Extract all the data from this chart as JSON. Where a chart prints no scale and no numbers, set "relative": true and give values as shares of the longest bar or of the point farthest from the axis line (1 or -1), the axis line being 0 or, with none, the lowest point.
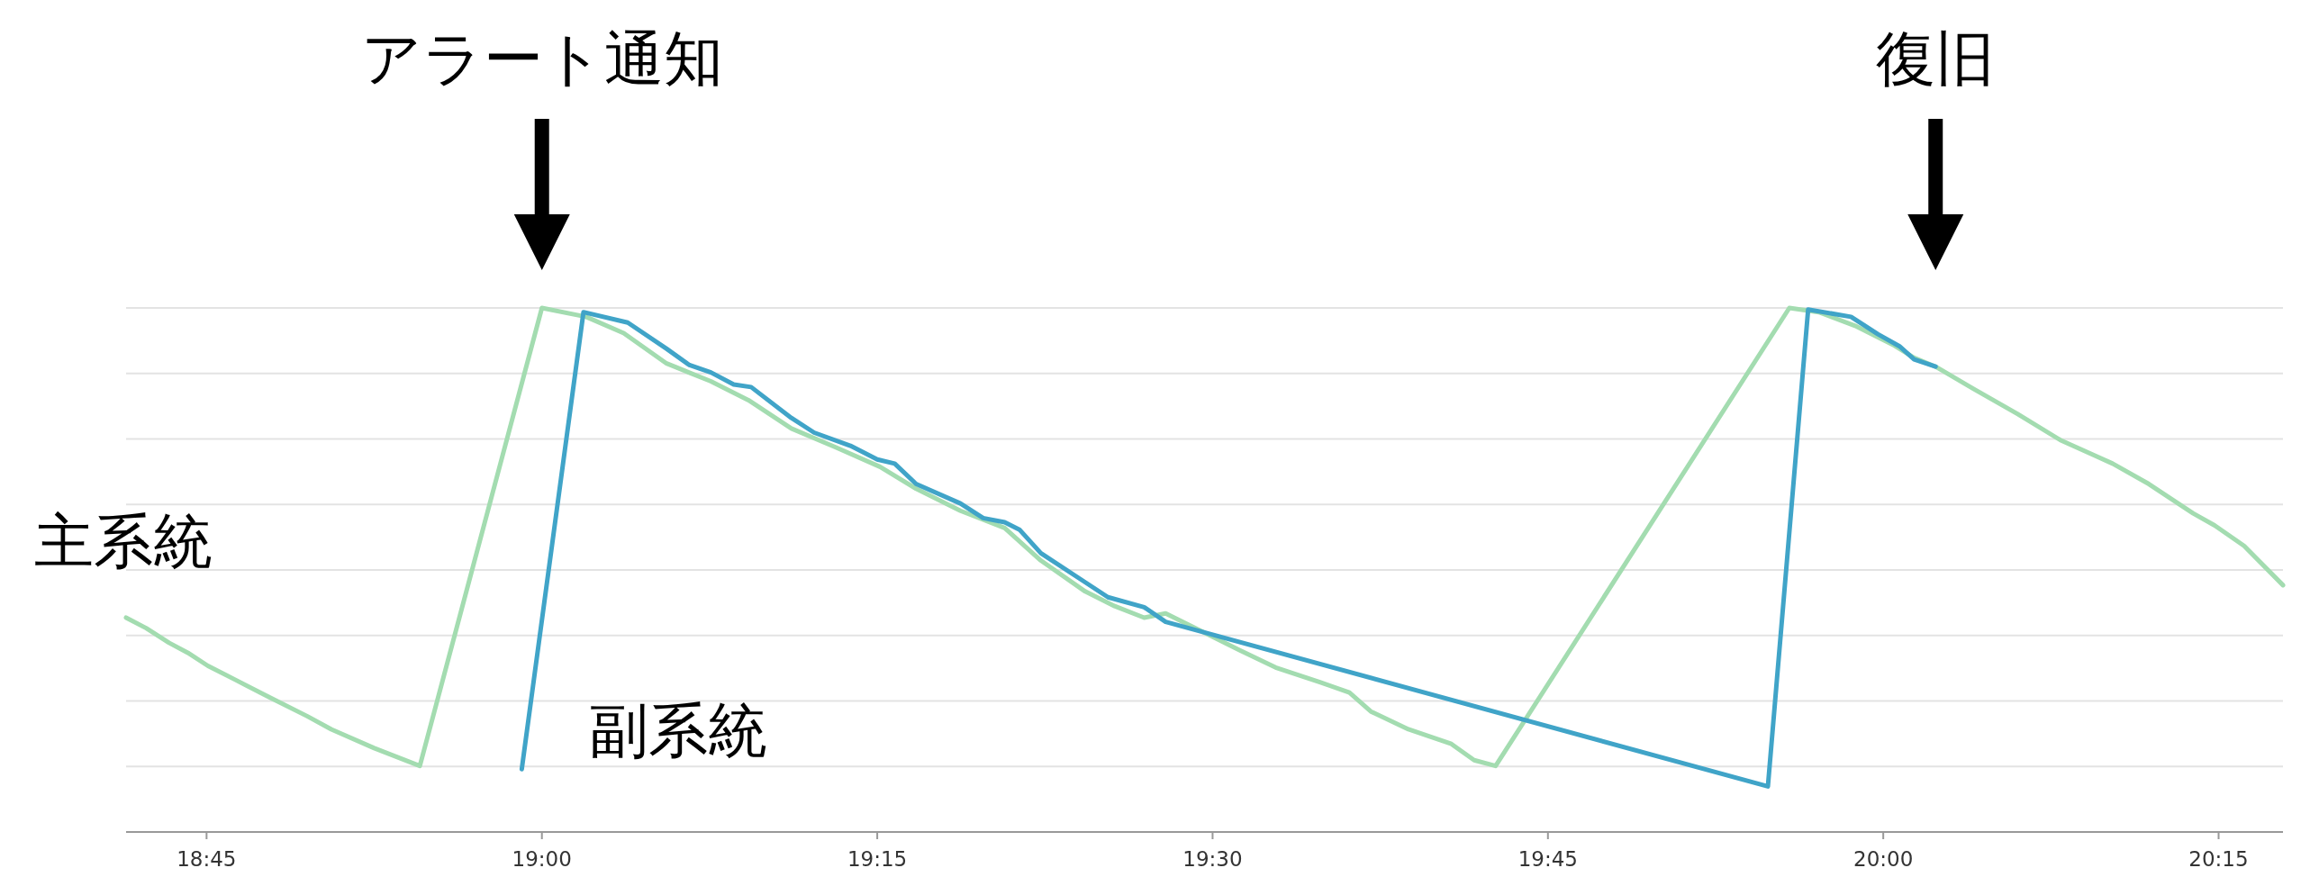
{
  "chart_data": {
    "type": "line",
    "relative": true,
    "grid": "y",
    "line_style": "solid",
    "xlim": [
      18.69,
      20.298
    ],
    "xticks": [
      {
        "value": 18.75,
        "label": "18:45"
      },
      {
        "value": 19.0,
        "label": "19:00"
      },
      {
        "value": 19.25,
        "label": "19:15"
      },
      {
        "value": 19.5,
        "label": "19:30"
      },
      {
        "value": 19.75,
        "label": "19:45"
      },
      {
        "value": 20.0,
        "label": "20:00"
      },
      {
        "value": 20.25,
        "label": "20:15"
      }
    ],
    "annotations": [
      "アラート通知",
      "復旧"
    ],
    "series": [
      {
        "name": "主系統",
        "color": "#a3dcb0",
        "x": [
          18.69,
          18.705,
          18.722,
          18.736,
          18.751,
          18.771,
          18.796,
          18.825,
          18.843,
          18.875,
          18.909,
          19.0,
          19.033,
          19.061,
          19.093,
          19.126,
          19.154,
          19.186,
          19.219,
          19.252,
          19.279,
          19.312,
          19.345,
          19.372,
          19.405,
          19.427,
          19.449,
          19.465,
          19.487,
          19.52,
          19.547,
          19.58,
          19.602,
          19.618,
          19.646,
          19.678,
          19.695,
          19.711,
          19.93,
          19.952,
          19.979,
          20.007,
          20.023,
          20.039,
          20.067,
          20.1,
          20.132,
          20.171,
          20.198,
          20.231,
          20.247,
          20.269,
          20.298
        ],
        "values": [
          0.409,
          0.389,
          0.361,
          0.342,
          0.317,
          0.291,
          0.258,
          0.221,
          0.196,
          0.16,
          0.126,
          1.0,
          0.983,
          0.952,
          0.894,
          0.86,
          0.824,
          0.77,
          0.734,
          0.697,
          0.655,
          0.613,
          0.58,
          0.518,
          0.459,
          0.431,
          0.409,
          0.417,
          0.389,
          0.347,
          0.314,
          0.286,
          0.266,
          0.23,
          0.196,
          0.168,
          0.137,
          0.126,
          1.0,
          0.992,
          0.966,
          0.93,
          0.905,
          0.888,
          0.846,
          0.798,
          0.748,
          0.703,
          0.664,
          0.608,
          0.585,
          0.546,
          0.471
        ]
      },
      {
        "name": "副系統",
        "color": "#40a4c8",
        "x": [
          18.985,
          19.031,
          19.064,
          19.093,
          19.11,
          19.126,
          19.143,
          19.156,
          19.186,
          19.203,
          19.23,
          19.25,
          19.263,
          19.279,
          19.312,
          19.329,
          19.345,
          19.356,
          19.372,
          19.4,
          19.422,
          19.449,
          19.465,
          19.914,
          19.944,
          19.976,
          19.996,
          20.012,
          20.023,
          20.039
        ],
        "values": [
          0.12,
          0.992,
          0.972,
          0.922,
          0.891,
          0.877,
          0.854,
          0.849,
          0.79,
          0.762,
          0.737,
          0.711,
          0.703,
          0.664,
          0.627,
          0.599,
          0.591,
          0.577,
          0.532,
          0.485,
          0.448,
          0.429,
          0.401,
          0.087,
          0.997,
          0.983,
          0.95,
          0.927,
          0.902,
          0.888
        ]
      }
    ]
  }
}
